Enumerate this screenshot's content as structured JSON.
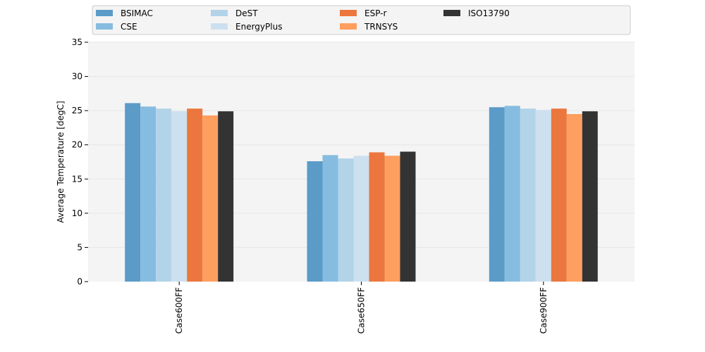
{
  "chart_data": {
    "type": "bar",
    "title": "",
    "xlabel": "",
    "ylabel": "Average Temperature [degC]",
    "categories": [
      "Case600FF",
      "Case650FF",
      "Case900FF"
    ],
    "ylim": [
      0,
      35
    ],
    "yticks": [
      0,
      5,
      10,
      15,
      20,
      25,
      30,
      35
    ],
    "grid": "horizontal",
    "legend_position": "top",
    "series": [
      {
        "name": "BSIMAC",
        "color": "#5b9bc8",
        "values": [
          26.1,
          17.6,
          25.5
        ]
      },
      {
        "name": "CSE",
        "color": "#86bcdf",
        "values": [
          25.6,
          18.5,
          25.7
        ]
      },
      {
        "name": "DeST",
        "color": "#b2d3e8",
        "values": [
          25.3,
          18.0,
          25.3
        ]
      },
      {
        "name": "EnergyPlus",
        "color": "#cde0f0",
        "values": [
          24.9,
          18.4,
          25.1
        ]
      },
      {
        "name": "ESP-r",
        "color": "#eb773e",
        "values": [
          25.3,
          18.9,
          25.3
        ]
      },
      {
        "name": "TRNSYS",
        "color": "#fe9f5f",
        "values": [
          24.3,
          18.4,
          24.5
        ]
      },
      {
        "name": "ISO13790",
        "color": "#333333",
        "values": [
          24.9,
          19.0,
          24.9
        ]
      }
    ]
  },
  "colors": {
    "plot_background": "#f4f4f4",
    "grid": "#e6e6e6",
    "legend_background": "#f4f4f4",
    "legend_border": "#cccccc"
  }
}
